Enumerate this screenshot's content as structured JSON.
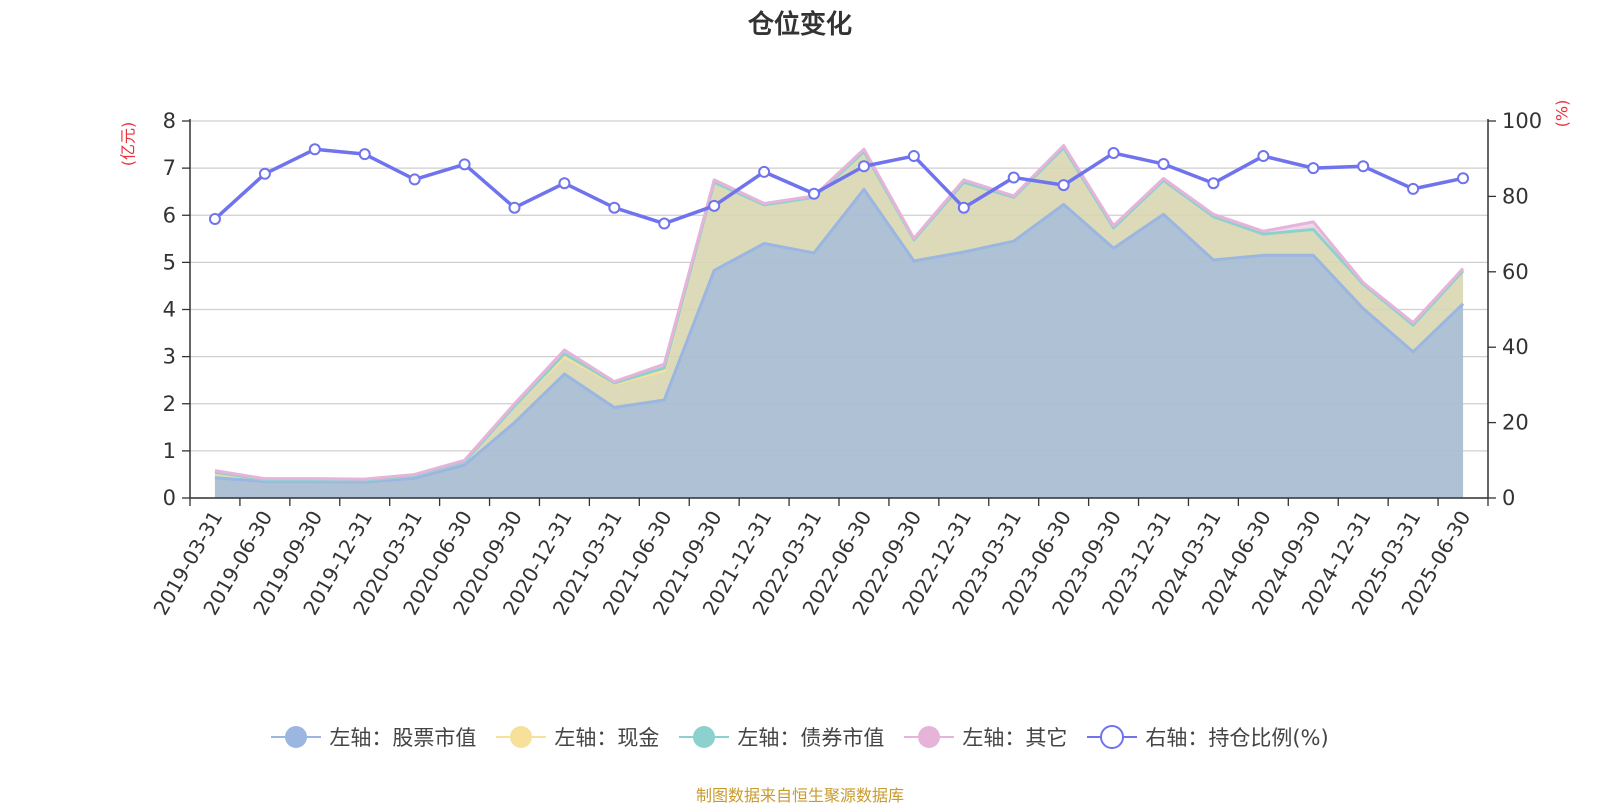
{
  "title": "仓位变化",
  "footer": "制图数据来自恒生聚源数据库",
  "axis_units": {
    "left": "(亿元)",
    "right": "(%)"
  },
  "colors": {
    "stock": "#9ab6e1",
    "cash": "#f7e09a",
    "bond": "#8dd1cf",
    "other": "#e6b3d9",
    "ratio": "#6f73ee",
    "axis_unit": "#e8323c",
    "footer": "#c99a2e"
  },
  "legend": [
    {
      "label": "左轴：股票市值",
      "color": "#9ab6e1",
      "shape": "circle"
    },
    {
      "label": "左轴：现金",
      "color": "#f7e09a",
      "shape": "circle"
    },
    {
      "label": "左轴：债券市值",
      "color": "#8dd1cf",
      "shape": "circle"
    },
    {
      "label": "左轴：其它",
      "color": "#e6b3d9",
      "shape": "circle"
    },
    {
      "label": "右轴：持仓比例(%)",
      "color": "#6f73ee",
      "shape": "ring"
    }
  ],
  "chart_data": {
    "type": "area",
    "title": "仓位变化",
    "categories": [
      "2019-03-31",
      "2019-06-30",
      "2019-09-30",
      "2019-12-31",
      "2020-03-31",
      "2020-06-30",
      "2020-09-30",
      "2020-12-31",
      "2021-03-31",
      "2021-06-30",
      "2021-09-30",
      "2021-12-31",
      "2022-03-31",
      "2022-06-30",
      "2022-09-30",
      "2022-12-31",
      "2023-03-31",
      "2023-06-30",
      "2023-09-30",
      "2023-12-31",
      "2024-03-31",
      "2024-06-30",
      "2024-09-30",
      "2024-12-31",
      "2025-03-31",
      "2025-06-30"
    ],
    "left_axis": {
      "unit": "(亿元)",
      "ylim": [
        0,
        8
      ],
      "ticks": [
        0,
        1,
        2,
        3,
        4,
        5,
        6,
        7,
        8
      ]
    },
    "right_axis": {
      "unit": "(%)",
      "ylim": [
        0,
        100
      ],
      "ticks": [
        0,
        20,
        40,
        60,
        80,
        100
      ]
    },
    "stacked_series": [
      {
        "name": "左轴：股票市值",
        "axis": "left",
        "values": [
          0.43,
          0.35,
          0.35,
          0.34,
          0.42,
          0.7,
          1.6,
          2.63,
          1.92,
          2.08,
          4.83,
          5.4,
          5.2,
          6.55,
          5.03,
          5.22,
          5.45,
          6.23,
          5.3,
          6.02,
          5.05,
          5.15,
          5.15,
          4.02,
          3.1,
          4.12
        ]
      },
      {
        "name": "左轴：现金",
        "axis": "left",
        "values": [
          0.12,
          0.04,
          0.04,
          0.04,
          0.06,
          0.07,
          0.35,
          0.37,
          0.5,
          0.62,
          1.87,
          0.82,
          1.18,
          0.8,
          0.45,
          1.48,
          0.93,
          1.2,
          0.43,
          0.72,
          0.92,
          0.45,
          0.55,
          0.52,
          0.57,
          0.7
        ]
      },
      {
        "name": "左轴：债券市值",
        "axis": "left",
        "values": [
          0,
          0,
          0,
          0,
          0,
          0,
          0,
          0.06,
          0.02,
          0.06,
          0,
          0,
          0,
          0,
          0,
          0,
          0,
          0,
          0,
          0,
          0,
          0,
          0,
          0,
          0,
          0
        ]
      },
      {
        "name": "左轴：其它",
        "axis": "left",
        "values": [
          0.03,
          0.02,
          0.02,
          0.02,
          0.02,
          0.03,
          0.05,
          0.08,
          0.03,
          0.08,
          0.05,
          0.03,
          0.03,
          0.05,
          0.03,
          0.05,
          0.03,
          0.05,
          0.05,
          0.04,
          0.05,
          0.06,
          0.16,
          0.03,
          0.05,
          0.05
        ]
      }
    ],
    "line_series": {
      "name": "右轴：持仓比例(%)",
      "axis": "right",
      "values": [
        74,
        86,
        92.5,
        91.2,
        84.5,
        88.5,
        77,
        83.5,
        77,
        72.8,
        77.5,
        86.5,
        80.7,
        88,
        90.7,
        77,
        85,
        83,
        91.5,
        88.6,
        83.5,
        90.7,
        87.5,
        88,
        82,
        84.8
      ]
    },
    "grid": true,
    "legend_position": "bottom"
  }
}
